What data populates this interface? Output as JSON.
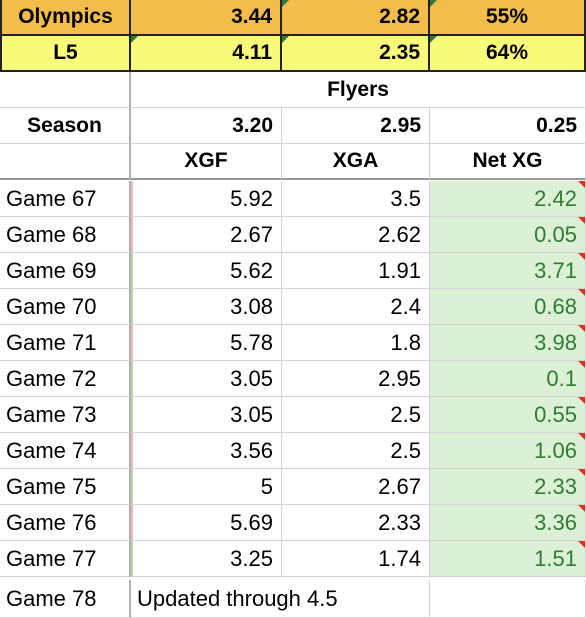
{
  "summary": {
    "olympics": {
      "label": "Olympics",
      "xgf": "3.44",
      "xga": "2.82",
      "pct": "55%"
    },
    "l5": {
      "label": "L5",
      "xgf": "4.11",
      "xga": "2.35",
      "pct": "64%"
    }
  },
  "team": "Flyers",
  "season": {
    "label": "Season",
    "xgf": "3.20",
    "xga": "2.95",
    "net": "0.25"
  },
  "headers": {
    "xgf": "XGF",
    "xga": "XGA",
    "net": "Net XG"
  },
  "games": [
    {
      "label": "Game 67",
      "xgf": "5.92",
      "xga": "3.5",
      "net": "2.42"
    },
    {
      "label": "Game 68",
      "xgf": "2.67",
      "xga": "2.62",
      "net": "0.05"
    },
    {
      "label": "Game 69",
      "xgf": "5.62",
      "xga": "1.91",
      "net": "3.71"
    },
    {
      "label": "Game 70",
      "xgf": "3.08",
      "xga": "2.4",
      "net": "0.68"
    },
    {
      "label": "Game 71",
      "xgf": "5.78",
      "xga": "1.8",
      "net": "3.98"
    },
    {
      "label": "Game 72",
      "xgf": "3.05",
      "xga": "2.95",
      "net": "0.1"
    },
    {
      "label": "Game 73",
      "xgf": "3.05",
      "xga": "2.5",
      "net": "0.55"
    },
    {
      "label": "Game 74",
      "xgf": "3.56",
      "xga": "2.5",
      "net": "1.06"
    },
    {
      "label": "Game 75",
      "xgf": "5",
      "xga": "2.67",
      "net": "2.33"
    },
    {
      "label": "Game 76",
      "xgf": "5.69",
      "xga": "2.33",
      "net": "3.36"
    },
    {
      "label": "Game 77",
      "xgf": "3.25",
      "xga": "1.74",
      "net": "1.51"
    }
  ],
  "last_row": {
    "label": "Game 78",
    "note": "Updated through 4.5"
  },
  "colors": {
    "olympics_bg": "#f4bd49",
    "l5_bg": "#fafa7a",
    "net_bg": "#dcf0d6",
    "net_text": "#2e7d32",
    "comment_marker": "#e0301e"
  }
}
